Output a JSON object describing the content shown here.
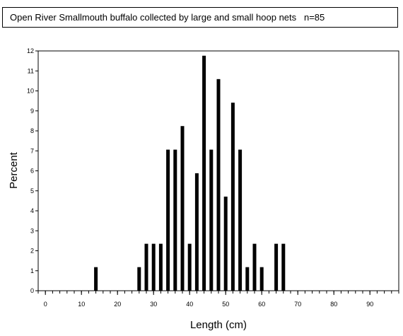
{
  "chart_data": {
    "type": "bar",
    "title": "Open River Smallmouth buffalo collected by large and small hoop nets   n=85",
    "xlabel": "Length (cm)",
    "ylabel": "Percent",
    "xlim": [
      -2,
      98
    ],
    "ylim": [
      0,
      12
    ],
    "x_ticks": [
      0,
      10,
      20,
      30,
      40,
      50,
      60,
      70,
      80,
      90
    ],
    "x_minor_step": 2,
    "y_ticks": [
      0,
      1,
      2,
      3,
      4,
      5,
      6,
      7,
      8,
      9,
      10,
      11,
      12
    ],
    "grid": false,
    "bar_color": "#000000",
    "x": [
      14,
      26,
      28,
      30,
      32,
      34,
      36,
      38,
      40,
      42,
      44,
      46,
      48,
      50,
      52,
      54,
      56,
      58,
      60,
      64,
      66
    ],
    "values": [
      1.18,
      1.18,
      2.35,
      2.35,
      2.35,
      7.06,
      7.06,
      8.24,
      2.35,
      5.88,
      11.76,
      7.06,
      10.59,
      4.71,
      9.41,
      7.06,
      1.18,
      2.35,
      1.18,
      2.35,
      2.35
    ]
  }
}
